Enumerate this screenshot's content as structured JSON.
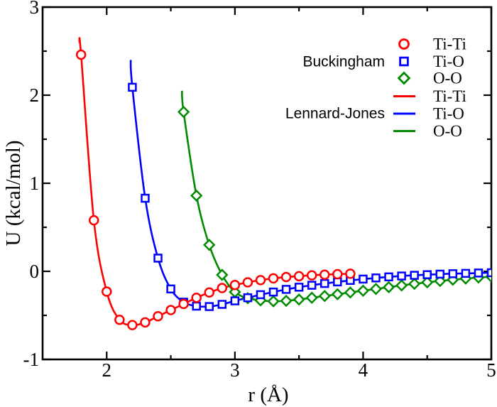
{
  "figure": {
    "x_axis": {
      "label": "r (Å)",
      "range": [
        1.5,
        5.0
      ],
      "major_ticks": [
        2,
        3,
        4,
        5
      ],
      "minor_ticks": [
        2.5,
        3.5,
        4.5
      ],
      "tick_labels": [
        "2",
        "3",
        "4",
        "5"
      ]
    },
    "y_axis": {
      "label": "U (kcal/mol)",
      "range": [
        -1,
        3
      ],
      "major_ticks": [
        3,
        2,
        1,
        0,
        -1
      ],
      "minor_ticks": [
        2.5,
        1.5,
        0.5,
        -0.5
      ],
      "tick_labels": [
        "3",
        "2",
        "1",
        "0",
        "-1"
      ]
    },
    "frame_color": "#000000",
    "background": "#ffffff",
    "legend": {
      "position": "upper-right",
      "groups": [
        {
          "label": "Buckingham",
          "style": "markers",
          "items": [
            {
              "label": "Ti-Ti",
              "marker": "circle",
              "color": "#ff0000"
            },
            {
              "label": "Ti-O",
              "marker": "square",
              "color": "#0000ff"
            },
            {
              "label": "O-O",
              "marker": "diamond",
              "color": "#008b00"
            }
          ]
        },
        {
          "label": "Lennard-Jones",
          "style": "lines",
          "items": [
            {
              "label": "Ti-Ti",
              "color": "#ff0000"
            },
            {
              "label": "Ti-O",
              "color": "#0000ff"
            },
            {
              "label": "O-O",
              "color": "#008b00"
            }
          ]
        }
      ]
    }
  },
  "chart_data": {
    "type": "scatter",
    "title": "",
    "xlabel": "r (Å)",
    "ylabel": "U (kcal/mol)",
    "xlim": [
      1.5,
      5.0
    ],
    "ylim": [
      -1,
      3
    ],
    "grid": false,
    "note": "Open markers = Buckingham potential points; solid lines = Lennard-Jones curves (lines pass through the markers).",
    "series": [
      {
        "name": "Ti-Ti",
        "marker": "circle",
        "color": "#ff0000",
        "line_start": {
          "r": 1.787,
          "U": 2.6
        },
        "r": [
          1.8,
          1.9,
          2.0,
          2.1,
          2.2,
          2.3,
          2.4,
          2.5,
          2.6,
          2.7,
          2.8,
          2.9,
          3.0,
          3.1,
          3.2,
          3.3,
          3.4,
          3.5,
          3.6,
          3.7,
          3.8,
          3.9
        ],
        "U": [
          2.46,
          0.58,
          -0.23,
          -0.55,
          -0.61,
          -0.58,
          -0.51,
          -0.44,
          -0.37,
          -0.3,
          -0.24,
          -0.19,
          -0.155,
          -0.125,
          -0.1,
          -0.08,
          -0.065,
          -0.055,
          -0.045,
          -0.038,
          -0.032,
          -0.027
        ]
      },
      {
        "name": "Ti-O",
        "marker": "square",
        "color": "#0000ff",
        "line_start": {
          "r": 2.187,
          "U": 2.4
        },
        "r": [
          2.2,
          2.3,
          2.4,
          2.5,
          2.6,
          2.7,
          2.8,
          2.9,
          3.0,
          3.1,
          3.2,
          3.3,
          3.4,
          3.5,
          3.6,
          3.7,
          3.8,
          3.9,
          4.0,
          4.1,
          4.2,
          4.3,
          4.4,
          4.5,
          4.6,
          4.7,
          4.8,
          4.9,
          5.0
        ],
        "U": [
          2.09,
          0.83,
          0.15,
          -0.2,
          -0.35,
          -0.395,
          -0.4,
          -0.375,
          -0.335,
          -0.3,
          -0.265,
          -0.235,
          -0.205,
          -0.18,
          -0.158,
          -0.138,
          -0.12,
          -0.103,
          -0.088,
          -0.075,
          -0.063,
          -0.053,
          -0.045,
          -0.038,
          -0.032,
          -0.027,
          -0.023,
          -0.019,
          -0.016
        ]
      },
      {
        "name": "O-O",
        "marker": "diamond",
        "color": "#008b00",
        "line_start": {
          "r": 2.587,
          "U": 2.05
        },
        "r": [
          2.6,
          2.7,
          2.8,
          2.9,
          3.0,
          3.1,
          3.2,
          3.3,
          3.4,
          3.5,
          3.6,
          3.7,
          3.8,
          3.9,
          4.0,
          4.1,
          4.2,
          4.3,
          4.4,
          4.5,
          4.6,
          4.7,
          4.8,
          4.9,
          5.0
        ],
        "U": [
          1.81,
          0.86,
          0.3,
          -0.04,
          -0.235,
          -0.305,
          -0.33,
          -0.34,
          -0.335,
          -0.32,
          -0.3,
          -0.28,
          -0.26,
          -0.24,
          -0.22,
          -0.2,
          -0.18,
          -0.16,
          -0.142,
          -0.125,
          -0.11,
          -0.095,
          -0.082,
          -0.07,
          -0.06
        ]
      }
    ]
  }
}
